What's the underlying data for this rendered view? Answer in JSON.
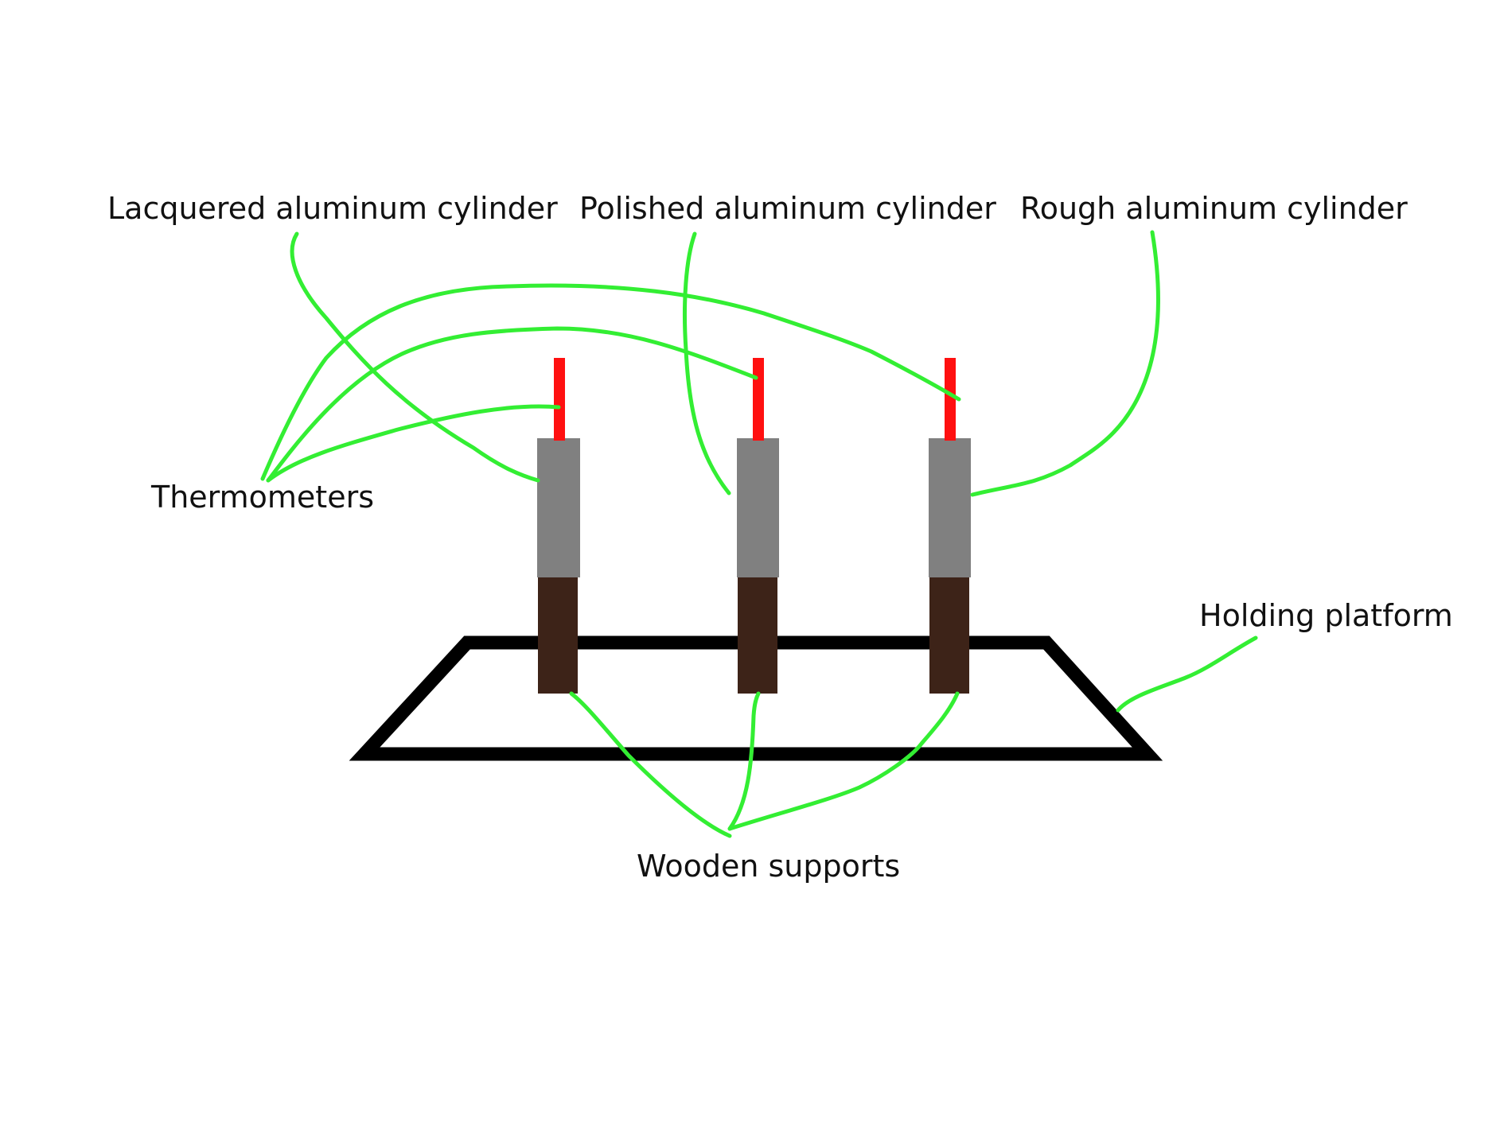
{
  "labels": {
    "lacquered": "Lacquered aluminum cylinder",
    "polished": "Polished aluminum cylinder",
    "rough": "Rough aluminum cylinder",
    "thermometers": "Thermometers",
    "holding_platform": "Holding platform",
    "wooden_supports": "Wooden supports"
  },
  "colors": {
    "background": "#ffffff",
    "leader_line": "#33ee33",
    "thermometer": "#ff1010",
    "cylinder": "#808080",
    "wooden_support": "#3d2318",
    "platform": "#000000",
    "text": "#111111"
  }
}
